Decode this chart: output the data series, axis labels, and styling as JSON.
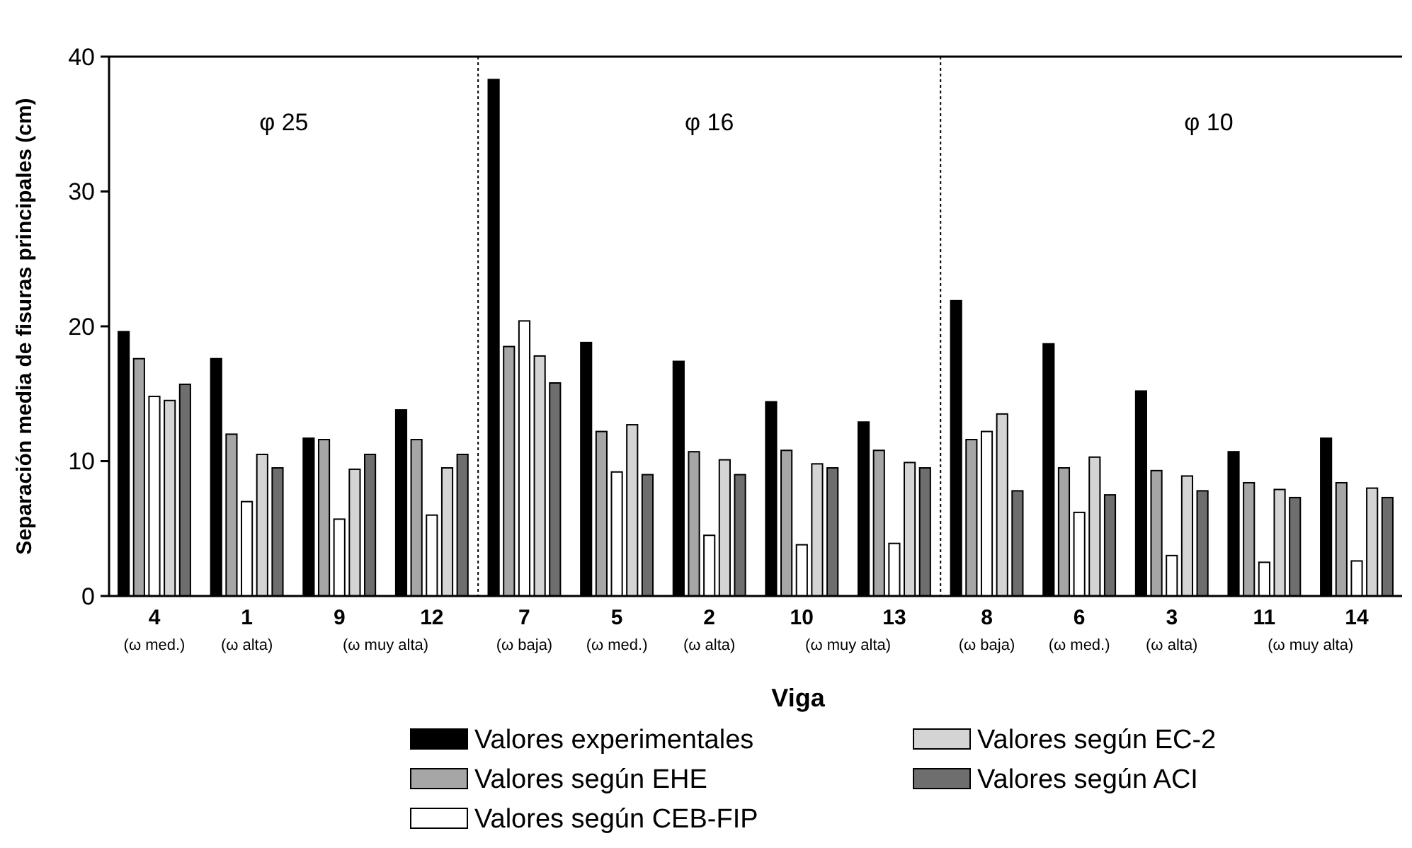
{
  "chart_data": {
    "type": "bar",
    "xlabel": "Viga",
    "ylabel": "Separación media de fisuras principales (cm)",
    "categories": [
      "4",
      "1",
      "9",
      "12",
      "7",
      "5",
      "2",
      "10",
      "13",
      "8",
      "6",
      "3",
      "11",
      "14"
    ],
    "series": [
      {
        "name": "Valores experimentales",
        "color": "#000000",
        "values": [
          19.6,
          17.6,
          11.7,
          13.8,
          38.3,
          18.8,
          17.4,
          14.4,
          12.9,
          21.9,
          18.7,
          15.2,
          10.7,
          11.7
        ]
      },
      {
        "name": "Valores según EHE",
        "color": "#a6a6a6",
        "values": [
          17.6,
          12.0,
          11.6,
          11.6,
          18.5,
          12.2,
          10.7,
          10.8,
          10.8,
          11.6,
          9.5,
          9.3,
          8.4,
          8.4
        ]
      },
      {
        "name": "Valores según CEB-FIP",
        "color": "#ffffff",
        "values": [
          14.8,
          7.0,
          5.7,
          6.0,
          20.4,
          9.2,
          4.5,
          3.8,
          3.9,
          12.2,
          6.2,
          3.0,
          2.5,
          2.6
        ]
      },
      {
        "name": "Valores según EC-2",
        "color": "#d4d4d4",
        "values": [
          14.5,
          10.5,
          9.4,
          9.5,
          17.8,
          12.7,
          10.1,
          9.8,
          9.9,
          13.5,
          10.3,
          8.9,
          7.9,
          8.0
        ]
      },
      {
        "name": "Valores según ACI",
        "color": "#6e6e6e",
        "values": [
          15.7,
          9.5,
          10.5,
          10.5,
          15.8,
          9.0,
          9.0,
          9.5,
          9.5,
          7.8,
          7.5,
          7.8,
          7.3,
          7.3
        ]
      }
    ],
    "ylim": [
      0,
      40
    ],
    "yticks": [
      0,
      10,
      20,
      30,
      40
    ],
    "annotations": [
      "φ 25",
      "φ 16",
      "φ 10",
      "(ω med.)",
      "(ω alta)",
      "(ω muy alta)",
      "(ω baja)",
      "(ω med.)",
      "(ω alta)",
      "(ω muy alta)",
      "(ω baja)",
      "(ω med.)",
      "(ω alta)",
      "(ω muy alta)"
    ],
    "legend": "bottom"
  }
}
